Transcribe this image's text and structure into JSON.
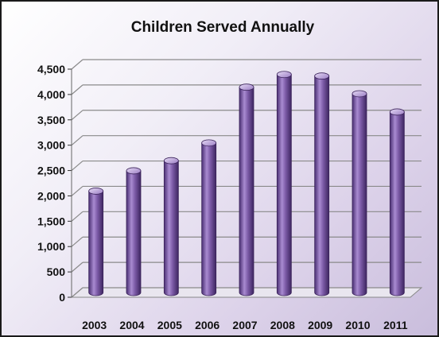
{
  "chart_data": {
    "type": "bar",
    "title": "Children Served Annually",
    "categories": [
      "2003",
      "2004",
      "2005",
      "2006",
      "2007",
      "2008",
      "2009",
      "2010",
      "2011"
    ],
    "values": [
      2000,
      2400,
      2600,
      2950,
      4050,
      4300,
      4270,
      3920,
      3560
    ],
    "ylim": [
      0,
      4500
    ],
    "yticks": [
      0,
      500,
      1000,
      1500,
      2000,
      2500,
      3000,
      3500,
      4000,
      4500
    ],
    "ytick_labels": [
      "0",
      "500",
      "1,000",
      "1,500",
      "2,000",
      "2,500",
      "3,000",
      "3,500",
      "4,000",
      "4,500"
    ],
    "xlabel": "",
    "ylabel": "",
    "grid": true,
    "legend": "none",
    "style": "3d-cylinder",
    "colors": {
      "bar": "#7b5aa6",
      "bar_dark": "#4a2f73",
      "bar_light": "#c7b3e6"
    }
  }
}
